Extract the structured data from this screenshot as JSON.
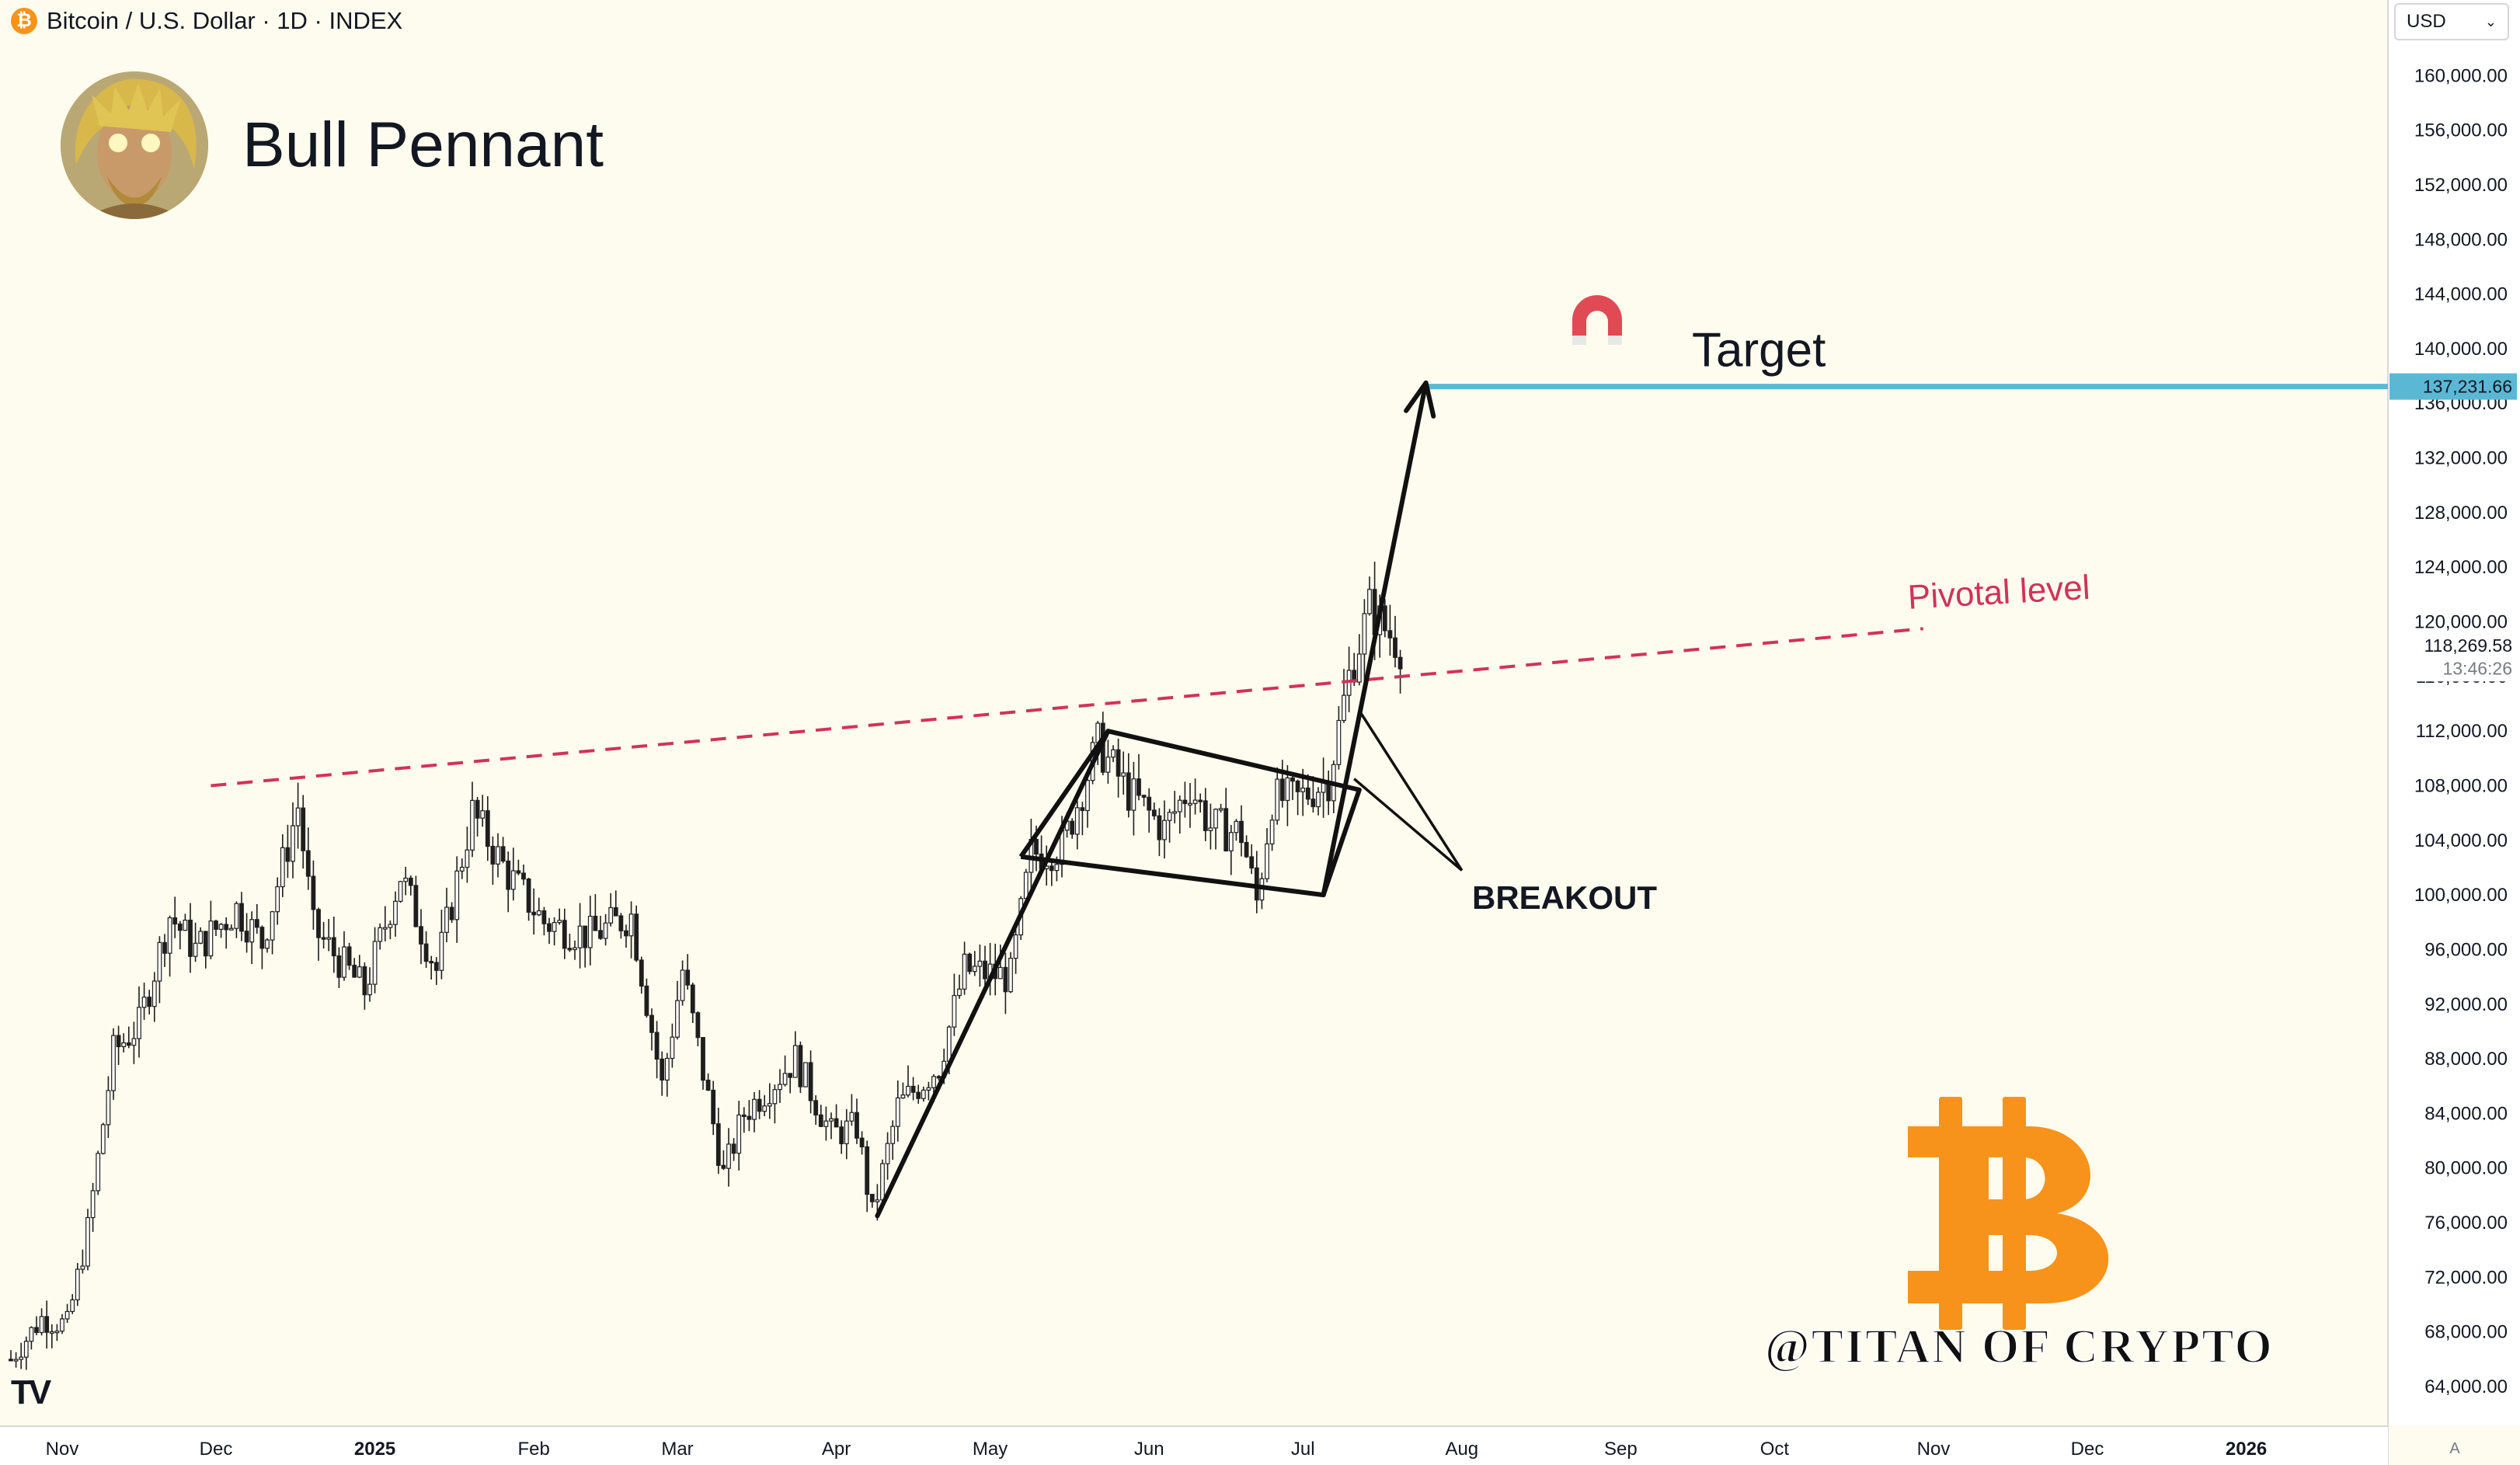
{
  "header": {
    "symbol_icon": "bitcoin-icon",
    "title": "Bitcoin / U.S. Dollar · 1D · INDEX"
  },
  "currency_selector": {
    "value": "USD",
    "icon": "chevron-down-icon"
  },
  "avatar": {
    "icon": "avatar-portrait"
  },
  "chart_title": "Bull Pennant",
  "watermark": "@TITAN OF CRYPTO",
  "tv_logo": "TV",
  "auto_scale_label": "A",
  "colors": {
    "background": "#fdfcee",
    "candle": "#1e1e1e",
    "pivotal_line": "#d0335a",
    "target_line": "#5bb8d4",
    "bitcoin": "#f7931a",
    "magnet": "#e04a55"
  },
  "chart_data": {
    "type": "candlestick",
    "title": "Bull Pennant",
    "y_axis": {
      "ticks": [
        "160,000.00",
        "156,000.00",
        "152,000.00",
        "148,000.00",
        "144,000.00",
        "140,000.00",
        "136,000.00",
        "132,000.00",
        "128,000.00",
        "124,000.00",
        "120,000.00",
        "116,000.00",
        "112,000.00",
        "108,000.00",
        "104,000.00",
        "100,000.00",
        "96,000.00",
        "92,000.00",
        "88,000.00",
        "84,000.00",
        "80,000.00",
        "76,000.00",
        "72,000.00",
        "68,000.00",
        "64,000.00"
      ],
      "ylim": [
        62000,
        165000
      ]
    },
    "x_axis": {
      "ticks": [
        "Nov",
        "Dec",
        "2025",
        "Feb",
        "Mar",
        "Apr",
        "May",
        "Jun",
        "Jul",
        "Aug",
        "Sep",
        "Oct",
        "Nov",
        "Dec",
        "2026"
      ],
      "xlim": [
        "2024-10-22",
        "2026-01-28"
      ]
    },
    "price_labels": [
      {
        "text": "137,231.66",
        "value": 137231.66,
        "style": "target"
      },
      {
        "text": "118,269.58",
        "value": 118269.58,
        "style": "last"
      },
      {
        "text": "13:46:26",
        "value": 116600,
        "style": "countdown"
      }
    ],
    "close_path": [
      [
        "2024-10-22",
        66000
      ],
      [
        "2024-10-28",
        69000
      ],
      [
        "2024-11-02",
        68500
      ],
      [
        "2024-11-06",
        75500
      ],
      [
        "2024-11-11",
        88500
      ],
      [
        "2024-11-16",
        90500
      ],
      [
        "2024-11-22",
        98500
      ],
      [
        "2024-11-27",
        96000
      ],
      [
        "2024-12-05",
        99000
      ],
      [
        "2024-12-10",
        96500
      ],
      [
        "2024-12-17",
        106500
      ],
      [
        "2024-12-20",
        97500
      ],
      [
        "2024-12-30",
        93000
      ],
      [
        "2025-01-06",
        101500
      ],
      [
        "2025-01-13",
        94500
      ],
      [
        "2025-01-20",
        106000
      ],
      [
        "2025-01-27",
        101500
      ],
      [
        "2025-02-03",
        98000
      ],
      [
        "2025-02-12",
        97000
      ],
      [
        "2025-02-20",
        98500
      ],
      [
        "2025-02-26",
        86000
      ],
      [
        "2025-03-02",
        94500
      ],
      [
        "2025-03-10",
        79500
      ],
      [
        "2025-03-14",
        84000
      ],
      [
        "2025-03-24",
        88000
      ],
      [
        "2025-03-31",
        82500
      ],
      [
        "2025-04-05",
        83000
      ],
      [
        "2025-04-08",
        76500
      ],
      [
        "2025-04-13",
        84500
      ],
      [
        "2025-04-21",
        87500
      ],
      [
        "2025-04-26",
        94500
      ],
      [
        "2025-05-05",
        94000
      ],
      [
        "2025-05-09",
        103000
      ],
      [
        "2025-05-15",
        103500
      ],
      [
        "2025-05-22",
        111000
      ],
      [
        "2025-05-28",
        107500
      ],
      [
        "2025-06-04",
        104800
      ],
      [
        "2025-06-09",
        108000
      ],
      [
        "2025-06-13",
        105000
      ],
      [
        "2025-06-19",
        104500
      ],
      [
        "2025-06-22",
        99500
      ],
      [
        "2025-06-25",
        107000
      ],
      [
        "2025-06-30",
        107000
      ],
      [
        "2025-07-06",
        108500
      ],
      [
        "2025-07-10",
        116000
      ],
      [
        "2025-07-14",
        121000
      ],
      [
        "2025-07-17",
        119500
      ],
      [
        "2025-07-20",
        118270
      ]
    ],
    "annotations": [
      {
        "type": "trendline",
        "label": "Pivotal level",
        "style": "dashed",
        "from": [
          "2024-11-30",
          108000
        ],
        "to": [
          "2025-10-30",
          119500
        ],
        "extends_right_to": [
          "2025-11-21",
          120000
        ]
      },
      {
        "type": "horizontal_line",
        "label": "Target",
        "value": 137231.66,
        "from": "2025-07-25",
        "to": "2026-01-28"
      },
      {
        "type": "text",
        "label": "BREAKOUT",
        "position": [
          "2025-08-03",
          100000
        ]
      },
      {
        "type": "pennant_polygon",
        "points": [
          [
            "2025-05-07",
            102800
          ],
          [
            "2025-05-24",
            112000
          ],
          [
            "2025-07-12",
            107700
          ],
          [
            "2025-07-05",
            100000
          ],
          [
            "2025-05-07",
            102800
          ]
        ]
      },
      {
        "type": "arrow",
        "points": [
          [
            "2025-04-09",
            76500
          ],
          [
            "2025-05-24",
            112000
          ]
        ]
      },
      {
        "type": "arrow",
        "points": [
          [
            "2025-07-05",
            100000
          ],
          [
            "2025-07-25",
            137500
          ]
        ]
      },
      {
        "type": "pointer",
        "points": [
          [
            "2025-07-11",
            108500
          ],
          [
            "2025-08-01",
            101800
          ],
          [
            "2025-07-12",
            113500
          ]
        ]
      }
    ]
  }
}
